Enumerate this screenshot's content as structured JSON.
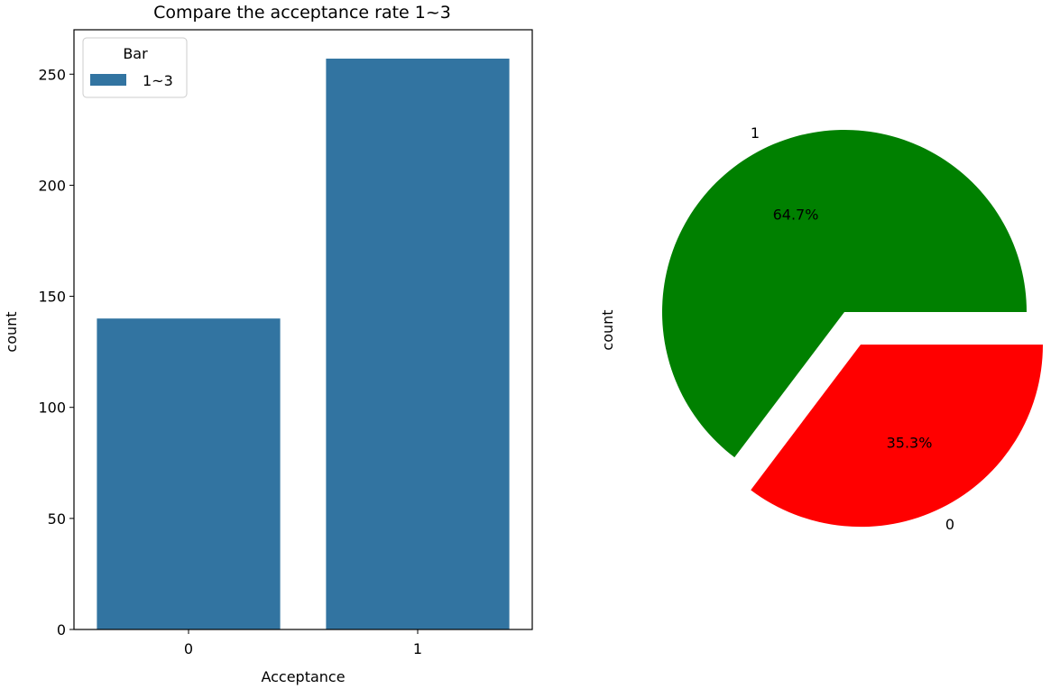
{
  "chart_data": [
    {
      "type": "bar",
      "title": "Compare the acceptance rate 1~3",
      "xlabel": "Acceptance",
      "ylabel": "count",
      "categories": [
        "0",
        "1"
      ],
      "series": [
        {
          "name": "1~3",
          "values": [
            140,
            257
          ],
          "color": "#3274a1"
        }
      ],
      "ylim": [
        0,
        270
      ],
      "yticks": [
        0,
        50,
        100,
        150,
        200,
        250
      ],
      "ytick_labels": [
        "0",
        "50",
        "100",
        "150",
        "200",
        "250"
      ],
      "legend": {
        "title": "Bar",
        "position": "top-left"
      },
      "grid": false
    },
    {
      "type": "pie",
      "ylabel": "count",
      "slices": [
        {
          "label": "1",
          "percent": 64.7,
          "pct_label": "64.7%",
          "color": "#008000",
          "explode": 0
        },
        {
          "label": "0",
          "percent": 35.3,
          "pct_label": "35.3%",
          "color": "#ff0000",
          "explode": 0.2
        }
      ]
    }
  ]
}
